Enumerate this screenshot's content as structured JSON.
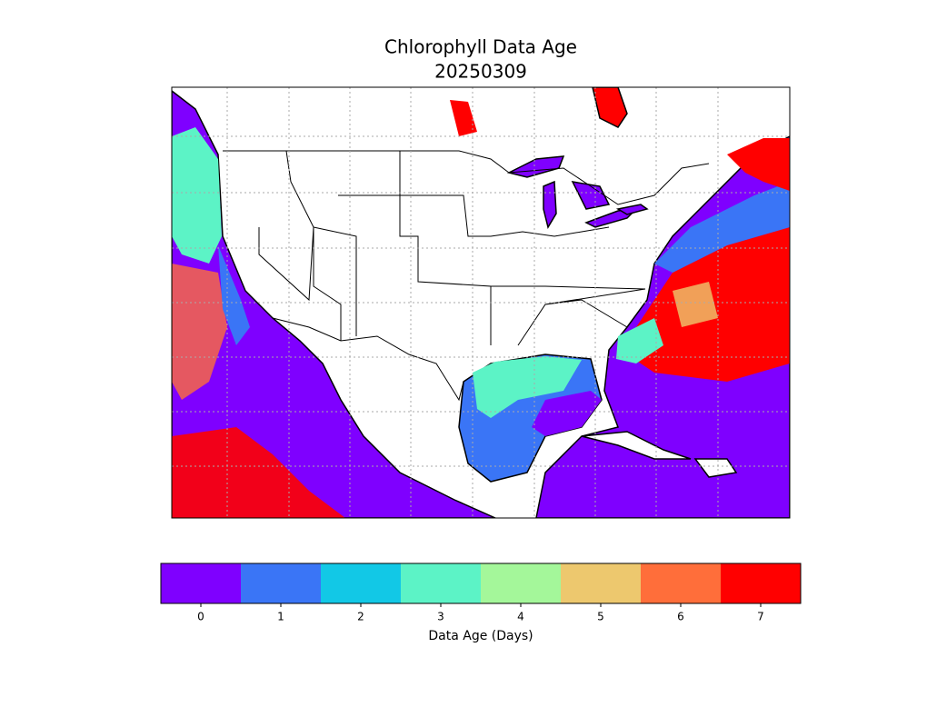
{
  "title": [
    "Chlorophyll Data Age",
    "20250309"
  ],
  "colorbar": {
    "label": "Data Age (Days)",
    "ticks": [
      0,
      1,
      2,
      3,
      4,
      5,
      6,
      7
    ],
    "colors": [
      "#7f00ff",
      "#3a75f6",
      "#12c8e6",
      "#5cf3c6",
      "#a4f79a",
      "#edc86e",
      "#ff6e3a",
      "#ff0000"
    ]
  }
}
